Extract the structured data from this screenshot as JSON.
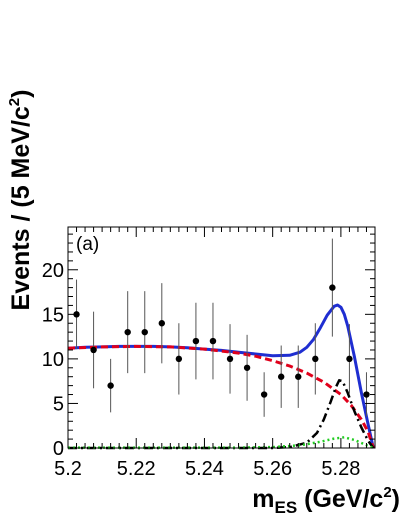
{
  "chart_data": {
    "type": "scatter",
    "panel_label": "(a)",
    "xlabel": {
      "main": "m",
      "sub": "ES",
      "unit": "(GeV/c",
      "sup": "2",
      "close": ")"
    },
    "ylabel": {
      "main": "Events / (5 MeV/c",
      "sup": "2",
      "close": ")"
    },
    "xlim": [
      5.2,
      5.29
    ],
    "ylim": [
      0,
      24.8
    ],
    "x_ticks": [
      5.2,
      5.22,
      5.24,
      5.26,
      5.28
    ],
    "x_tick_labels": [
      "5.2",
      "5.22",
      "5.24",
      "5.26",
      "5.28"
    ],
    "y_ticks": [
      0,
      5,
      10,
      15,
      20
    ],
    "y_tick_labels": [
      "0",
      "5",
      "10",
      "15",
      "20"
    ],
    "grid": false,
    "legend": "none",
    "series": [
      {
        "kind": "data-points",
        "x": [
          5.2025,
          5.2075,
          5.2125,
          5.2175,
          5.2225,
          5.2275,
          5.2325,
          5.2375,
          5.2425,
          5.2475,
          5.2525,
          5.2575,
          5.2625,
          5.2675,
          5.2725,
          5.2775,
          5.2825,
          5.2875
        ],
        "y": [
          15,
          11,
          7,
          13,
          13,
          14,
          10,
          12,
          12,
          10,
          9,
          6,
          8,
          8,
          10,
          18,
          10,
          6
        ],
        "err": [
          3.9,
          4.3,
          3.0,
          4.6,
          4.6,
          4.5,
          4.0,
          4.3,
          4.3,
          3.9,
          3.7,
          2.5,
          3.5,
          3.5,
          4.0,
          5.5,
          3.9,
          2.5
        ],
        "color": "#000000"
      },
      {
        "kind": "total-fit",
        "style": "solid",
        "color": "#1f2ed1",
        "x": [
          5.2,
          5.205,
          5.21,
          5.215,
          5.22,
          5.225,
          5.23,
          5.235,
          5.24,
          5.245,
          5.25,
          5.255,
          5.26,
          5.265,
          5.268,
          5.27,
          5.272,
          5.274,
          5.276,
          5.278,
          5.279,
          5.28,
          5.281,
          5.282,
          5.284,
          5.286,
          5.288,
          5.2895
        ],
        "y": [
          11.2,
          11.3,
          11.35,
          11.4,
          11.4,
          11.4,
          11.35,
          11.25,
          11.1,
          10.95,
          10.75,
          10.55,
          10.35,
          10.4,
          10.75,
          11.3,
          12.2,
          13.5,
          14.9,
          15.9,
          16.05,
          15.8,
          15.0,
          13.7,
          10.2,
          6.2,
          2.6,
          0
        ]
      },
      {
        "kind": "background",
        "style": "dashed",
        "color": "#e0001b",
        "x": [
          5.2,
          5.21,
          5.22,
          5.23,
          5.24,
          5.25,
          5.255,
          5.26,
          5.265,
          5.27,
          5.275,
          5.28,
          5.283,
          5.286,
          5.288,
          5.2895
        ],
        "y": [
          11.2,
          11.35,
          11.4,
          11.35,
          11.1,
          10.65,
          10.3,
          9.8,
          9.2,
          8.4,
          7.4,
          6.0,
          4.8,
          3.2,
          1.8,
          0
        ]
      },
      {
        "kind": "signal-component",
        "style": "dash-dot",
        "color": "#000000",
        "x": [
          5.2,
          5.26,
          5.265,
          5.27,
          5.273,
          5.275,
          5.277,
          5.2785,
          5.2795,
          5.2805,
          5.282,
          5.284,
          5.286,
          5.288,
          5.2895
        ],
        "y": [
          0,
          0,
          0.1,
          0.6,
          1.7,
          3.2,
          5.2,
          6.8,
          7.6,
          7.5,
          6.2,
          4.1,
          2.3,
          0.8,
          0
        ]
      },
      {
        "kind": "peaking-background",
        "style": "dotted",
        "color": "#22cc22",
        "x": [
          5.2,
          5.25,
          5.26,
          5.268,
          5.274,
          5.278,
          5.281,
          5.284,
          5.287,
          5.2895
        ],
        "y": [
          0.05,
          0.05,
          0.1,
          0.3,
          0.7,
          1.05,
          1.2,
          0.9,
          0.4,
          0
        ]
      }
    ]
  }
}
